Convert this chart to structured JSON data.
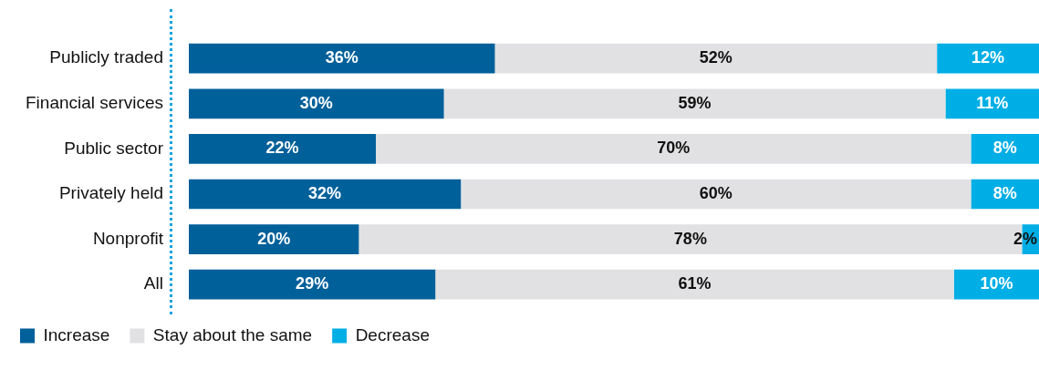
{
  "chart_data": {
    "type": "bar",
    "orientation": "horizontal",
    "stacked": true,
    "categories": [
      "Publicly traded",
      "Financial services",
      "Public sector",
      "Privately held",
      "Nonprofit",
      "All"
    ],
    "series": [
      {
        "name": "Increase",
        "color": "#00609a",
        "values": [
          36,
          30,
          22,
          32,
          20,
          29
        ],
        "value_labels": [
          "36%",
          "30%",
          "22%",
          "32%",
          "20%",
          "29%"
        ]
      },
      {
        "name": "Stay about the same",
        "color": "#e1e1e3",
        "values": [
          52,
          59,
          70,
          60,
          78,
          61
        ],
        "value_labels": [
          "52%",
          "59%",
          "70%",
          "60%",
          "78%",
          "61%"
        ]
      },
      {
        "name": "Decrease",
        "color": "#00aee6",
        "values": [
          12,
          11,
          8,
          8,
          2,
          10
        ],
        "value_labels": [
          "12%",
          "11%",
          "8%",
          "8%",
          "2%",
          "10%"
        ]
      }
    ],
    "tick_labels": "y",
    "grid": false,
    "legend": "bottom"
  }
}
